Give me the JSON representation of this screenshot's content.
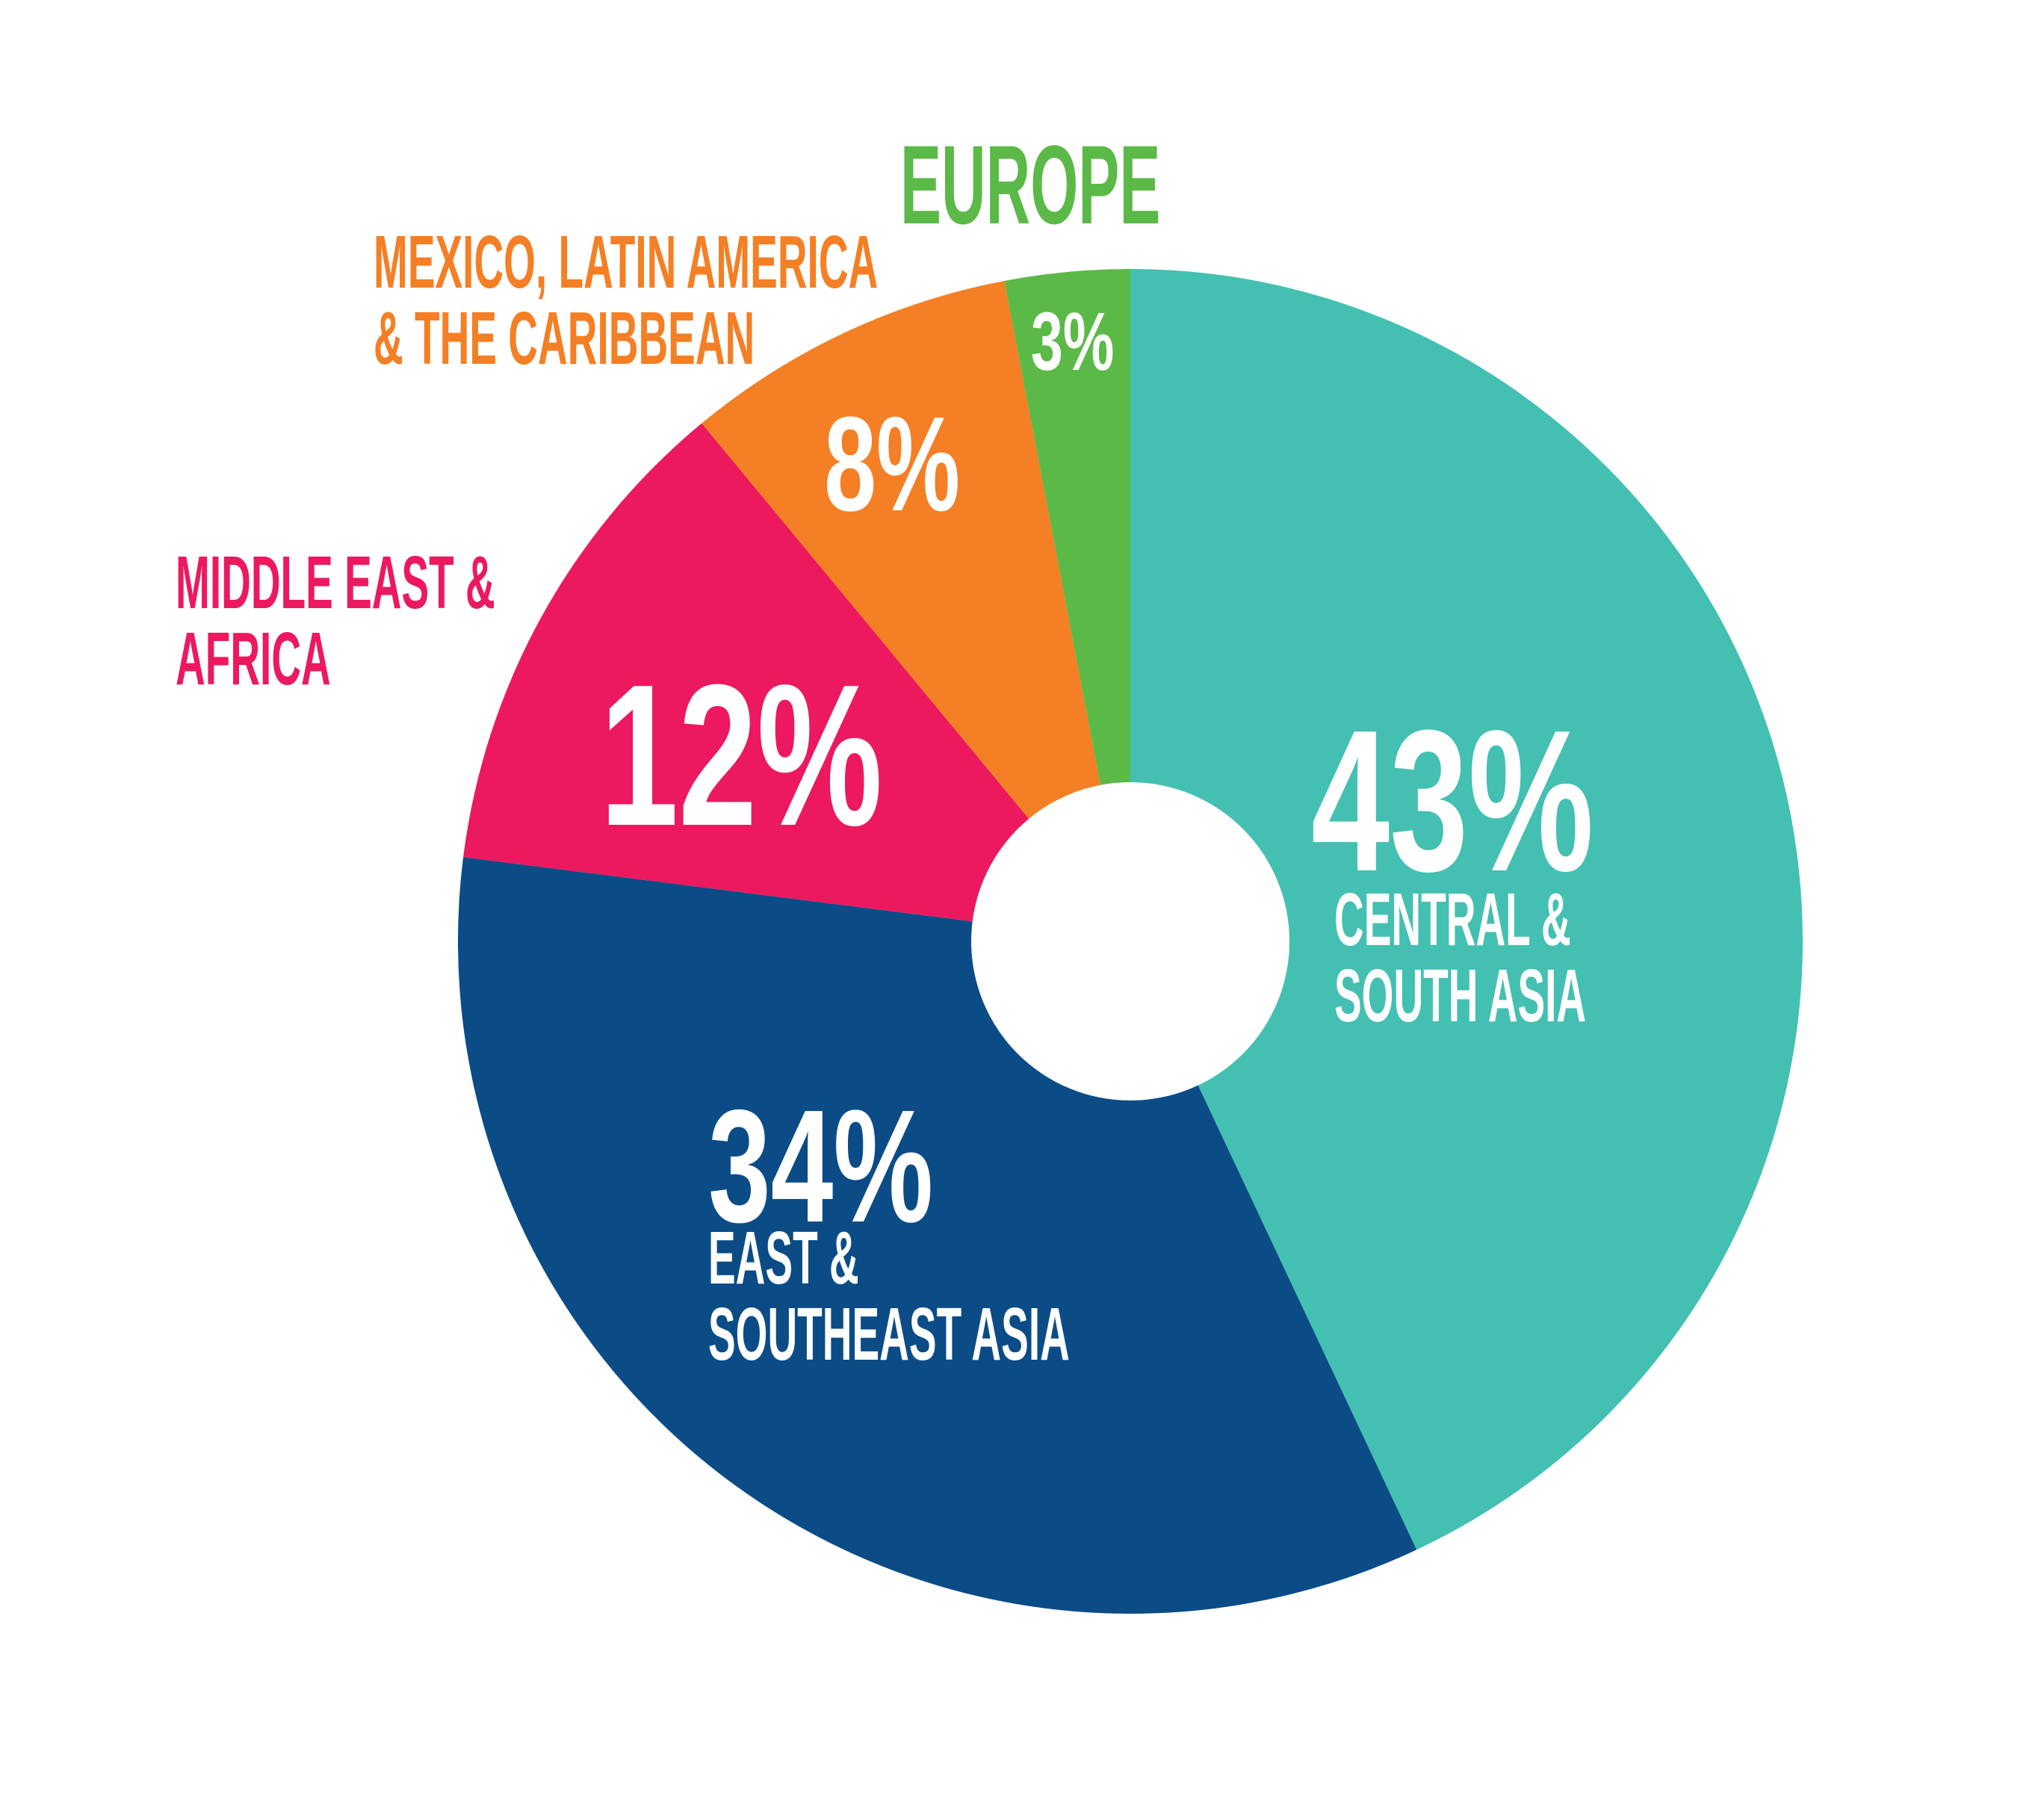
{
  "chart_data": {
    "type": "donut",
    "categories": [
      "CENTRAL & SOUTH ASIA",
      "EAST & SOUTHEAST ASIA",
      "MIDDLE EAST & AFRICA",
      "MEXICO, LATIN AMERICA & THE CARIBBEAN",
      "EUROPE"
    ],
    "values": [
      43,
      34,
      12,
      8,
      3
    ],
    "value_labels": [
      "43%",
      "34%",
      "12%",
      "8%",
      "3%"
    ],
    "colors": [
      "#43c0b1",
      "#0b4c87",
      "#ec195e",
      "#f47f24",
      "#5bb947"
    ]
  }
}
